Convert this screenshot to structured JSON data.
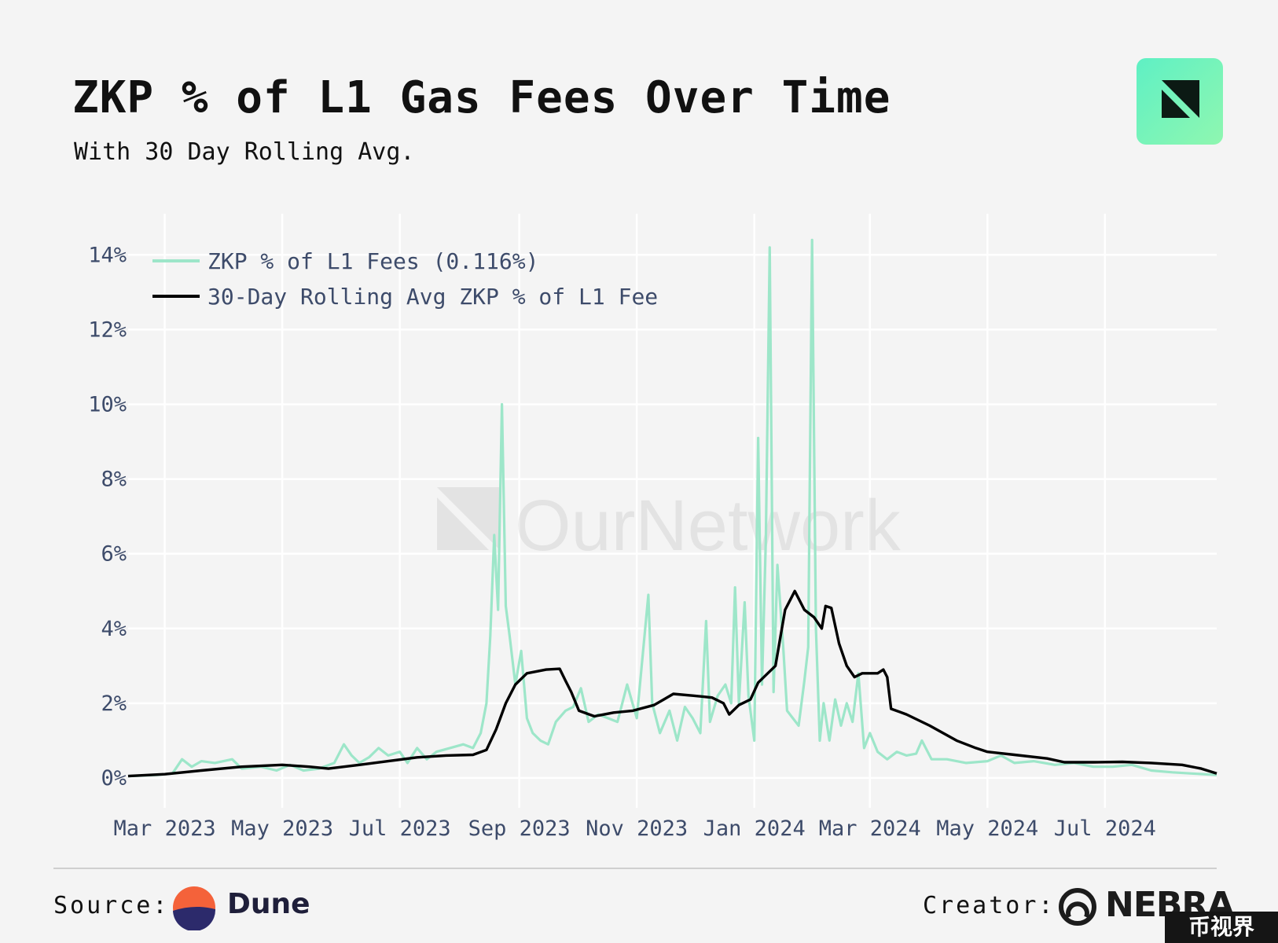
{
  "header": {
    "title": "ZKP % of L1 Gas Fees Over Time",
    "subtitle": "With 30 Day Rolling Avg."
  },
  "watermark": {
    "text": "OurNetwork"
  },
  "footer": {
    "source_label": "Source:",
    "source_name": "Dune",
    "creator_label": "Creator:",
    "creator_name": "NEBRA",
    "corner_mark": "币视界"
  },
  "colors": {
    "background": "#f4f4f4",
    "daily_series": "#9de6c9",
    "rolling_series": "#000000",
    "grid": "#ffffff",
    "axis_text": "#3d4b6a"
  },
  "chart_data": {
    "type": "line",
    "xlabel": "",
    "ylabel": "",
    "x_ticks": [
      "Mar 2023",
      "May 2023",
      "Jul 2023",
      "Sep 2023",
      "Nov 2023",
      "Jan 2024",
      "Mar 2024",
      "May 2024",
      "Jul 2024"
    ],
    "x_tick_dates": [
      "2023-03-01",
      "2023-05-01",
      "2023-07-01",
      "2023-09-01",
      "2023-11-01",
      "2024-01-01",
      "2024-03-01",
      "2024-05-01",
      "2024-07-01"
    ],
    "y_ticks": [
      "0%",
      "2%",
      "4%",
      "6%",
      "8%",
      "10%",
      "12%",
      "14%"
    ],
    "y_tick_values": [
      0,
      2,
      4,
      6,
      8,
      10,
      12,
      14
    ],
    "xlim": [
      "2023-02-10",
      "2024-08-28"
    ],
    "ylim": [
      -0.8,
      15.1
    ],
    "grid": true,
    "legend_position": "top-left",
    "series": [
      {
        "name": "ZKP % of L1 Fees (0.116%)",
        "points": [
          [
            "2023-02-10",
            0.05
          ],
          [
            "2023-02-25",
            0.08
          ],
          [
            "2023-03-05",
            0.12
          ],
          [
            "2023-03-10",
            0.5
          ],
          [
            "2023-03-15",
            0.3
          ],
          [
            "2023-03-20",
            0.45
          ],
          [
            "2023-03-27",
            0.4
          ],
          [
            "2023-04-05",
            0.5
          ],
          [
            "2023-04-10",
            0.25
          ],
          [
            "2023-04-20",
            0.3
          ],
          [
            "2023-04-28",
            0.2
          ],
          [
            "2023-05-05",
            0.35
          ],
          [
            "2023-05-12",
            0.2
          ],
          [
            "2023-05-20",
            0.25
          ],
          [
            "2023-05-28",
            0.4
          ],
          [
            "2023-06-02",
            0.9
          ],
          [
            "2023-06-06",
            0.6
          ],
          [
            "2023-06-10",
            0.4
          ],
          [
            "2023-06-15",
            0.55
          ],
          [
            "2023-06-20",
            0.8
          ],
          [
            "2023-06-25",
            0.6
          ],
          [
            "2023-07-01",
            0.7
          ],
          [
            "2023-07-05",
            0.4
          ],
          [
            "2023-07-10",
            0.8
          ],
          [
            "2023-07-15",
            0.5
          ],
          [
            "2023-07-20",
            0.7
          ],
          [
            "2023-07-27",
            0.8
          ],
          [
            "2023-08-03",
            0.9
          ],
          [
            "2023-08-08",
            0.8
          ],
          [
            "2023-08-12",
            1.2
          ],
          [
            "2023-08-15",
            2.0
          ],
          [
            "2023-08-17",
            3.8
          ],
          [
            "2023-08-19",
            6.5
          ],
          [
            "2023-08-21",
            4.5
          ],
          [
            "2023-08-23",
            10.0
          ],
          [
            "2023-08-25",
            4.6
          ],
          [
            "2023-08-27",
            3.8
          ],
          [
            "2023-08-30",
            2.5
          ],
          [
            "2023-09-02",
            3.4
          ],
          [
            "2023-09-05",
            1.6
          ],
          [
            "2023-09-08",
            1.2
          ],
          [
            "2023-09-12",
            1.0
          ],
          [
            "2023-09-16",
            0.9
          ],
          [
            "2023-09-20",
            1.5
          ],
          [
            "2023-09-25",
            1.8
          ],
          [
            "2023-09-29",
            1.9
          ],
          [
            "2023-10-03",
            2.4
          ],
          [
            "2023-10-07",
            1.5
          ],
          [
            "2023-10-12",
            1.7
          ],
          [
            "2023-10-17",
            1.6
          ],
          [
            "2023-10-22",
            1.5
          ],
          [
            "2023-10-27",
            2.5
          ],
          [
            "2023-11-01",
            1.6
          ],
          [
            "2023-11-05",
            3.8
          ],
          [
            "2023-11-07",
            4.9
          ],
          [
            "2023-11-09",
            2.0
          ],
          [
            "2023-11-13",
            1.2
          ],
          [
            "2023-11-18",
            1.8
          ],
          [
            "2023-11-22",
            1.0
          ],
          [
            "2023-11-26",
            1.9
          ],
          [
            "2023-11-30",
            1.6
          ],
          [
            "2023-12-04",
            1.2
          ],
          [
            "2023-12-07",
            4.2
          ],
          [
            "2023-12-09",
            1.5
          ],
          [
            "2023-12-13",
            2.2
          ],
          [
            "2023-12-17",
            2.5
          ],
          [
            "2023-12-20",
            2.0
          ],
          [
            "2023-12-22",
            5.1
          ],
          [
            "2023-12-24",
            2.0
          ],
          [
            "2023-12-27",
            4.7
          ],
          [
            "2023-12-29",
            2.2
          ],
          [
            "2024-01-01",
            1.0
          ],
          [
            "2024-01-03",
            9.1
          ],
          [
            "2024-01-05",
            2.5
          ],
          [
            "2024-01-07",
            6.4
          ],
          [
            "2024-01-09",
            14.2
          ],
          [
            "2024-01-11",
            2.3
          ],
          [
            "2024-01-13",
            5.7
          ],
          [
            "2024-01-16",
            3.5
          ],
          [
            "2024-01-18",
            1.8
          ],
          [
            "2024-01-21",
            1.6
          ],
          [
            "2024-01-24",
            1.4
          ],
          [
            "2024-01-27",
            2.6
          ],
          [
            "2024-01-29",
            3.5
          ],
          [
            "2024-01-31",
            14.4
          ],
          [
            "2024-02-02",
            4.0
          ],
          [
            "2024-02-04",
            1.0
          ],
          [
            "2024-02-06",
            2.0
          ],
          [
            "2024-02-09",
            1.0
          ],
          [
            "2024-02-12",
            2.1
          ],
          [
            "2024-02-15",
            1.4
          ],
          [
            "2024-02-18",
            2.0
          ],
          [
            "2024-02-21",
            1.5
          ],
          [
            "2024-02-24",
            2.8
          ],
          [
            "2024-02-27",
            0.8
          ],
          [
            "2024-03-01",
            1.2
          ],
          [
            "2024-03-05",
            0.7
          ],
          [
            "2024-03-10",
            0.5
          ],
          [
            "2024-03-15",
            0.7
          ],
          [
            "2024-03-20",
            0.6
          ],
          [
            "2024-03-25",
            0.65
          ],
          [
            "2024-03-28",
            1.0
          ],
          [
            "2024-04-02",
            0.5
          ],
          [
            "2024-04-10",
            0.5
          ],
          [
            "2024-04-20",
            0.4
          ],
          [
            "2024-05-01",
            0.45
          ],
          [
            "2024-05-08",
            0.6
          ],
          [
            "2024-05-15",
            0.4
          ],
          [
            "2024-05-25",
            0.45
          ],
          [
            "2024-06-05",
            0.35
          ],
          [
            "2024-06-15",
            0.4
          ],
          [
            "2024-06-25",
            0.3
          ],
          [
            "2024-07-05",
            0.3
          ],
          [
            "2024-07-15",
            0.35
          ],
          [
            "2024-07-25",
            0.2
          ],
          [
            "2024-08-05",
            0.15
          ],
          [
            "2024-08-15",
            0.12
          ],
          [
            "2024-08-28",
            0.08
          ]
        ]
      },
      {
        "name": "30-Day Rolling Avg ZKP % of L1 Fee",
        "points": [
          [
            "2023-02-10",
            0.05
          ],
          [
            "2023-03-01",
            0.1
          ],
          [
            "2023-03-20",
            0.2
          ],
          [
            "2023-04-10",
            0.3
          ],
          [
            "2023-05-01",
            0.35
          ],
          [
            "2023-05-15",
            0.3
          ],
          [
            "2023-05-25",
            0.25
          ],
          [
            "2023-06-10",
            0.35
          ],
          [
            "2023-06-25",
            0.45
          ],
          [
            "2023-07-10",
            0.55
          ],
          [
            "2023-07-25",
            0.6
          ],
          [
            "2023-08-08",
            0.62
          ],
          [
            "2023-08-15",
            0.75
          ],
          [
            "2023-08-20",
            1.3
          ],
          [
            "2023-08-25",
            2.0
          ],
          [
            "2023-08-30",
            2.5
          ],
          [
            "2023-09-05",
            2.8
          ],
          [
            "2023-09-15",
            2.9
          ],
          [
            "2023-09-22",
            2.92
          ],
          [
            "2023-09-25",
            2.6
          ],
          [
            "2023-09-28",
            2.3
          ],
          [
            "2023-10-02",
            1.8
          ],
          [
            "2023-10-10",
            1.65
          ],
          [
            "2023-10-20",
            1.75
          ],
          [
            "2023-10-30",
            1.8
          ],
          [
            "2023-11-10",
            1.95
          ],
          [
            "2023-11-15",
            2.1
          ],
          [
            "2023-11-20",
            2.25
          ],
          [
            "2023-12-01",
            2.2
          ],
          [
            "2023-12-10",
            2.15
          ],
          [
            "2023-12-16",
            2.0
          ],
          [
            "2023-12-19",
            1.7
          ],
          [
            "2023-12-24",
            1.95
          ],
          [
            "2023-12-30",
            2.1
          ],
          [
            "2024-01-03",
            2.55
          ],
          [
            "2024-01-08",
            2.8
          ],
          [
            "2024-01-12",
            3.0
          ],
          [
            "2024-01-14",
            3.6
          ],
          [
            "2024-01-17",
            4.5
          ],
          [
            "2024-01-20",
            4.8
          ],
          [
            "2024-01-22",
            5.0
          ],
          [
            "2024-01-24",
            4.8
          ],
          [
            "2024-01-27",
            4.5
          ],
          [
            "2024-02-01",
            4.3
          ],
          [
            "2024-02-05",
            4.0
          ],
          [
            "2024-02-07",
            4.6
          ],
          [
            "2024-02-10",
            4.55
          ],
          [
            "2024-02-14",
            3.6
          ],
          [
            "2024-02-18",
            3.0
          ],
          [
            "2024-02-22",
            2.7
          ],
          [
            "2024-02-26",
            2.8
          ],
          [
            "2024-03-05",
            2.8
          ],
          [
            "2024-03-08",
            2.9
          ],
          [
            "2024-03-10",
            2.7
          ],
          [
            "2024-03-12",
            1.85
          ],
          [
            "2024-03-20",
            1.7
          ],
          [
            "2024-04-01",
            1.4
          ],
          [
            "2024-04-15",
            1.0
          ],
          [
            "2024-04-25",
            0.8
          ],
          [
            "2024-05-01",
            0.7
          ],
          [
            "2024-05-15",
            0.62
          ],
          [
            "2024-06-01",
            0.52
          ],
          [
            "2024-06-10",
            0.42
          ],
          [
            "2024-06-25",
            0.42
          ],
          [
            "2024-07-10",
            0.43
          ],
          [
            "2024-07-25",
            0.4
          ],
          [
            "2024-08-10",
            0.35
          ],
          [
            "2024-08-20",
            0.25
          ],
          [
            "2024-08-28",
            0.12
          ]
        ]
      }
    ]
  }
}
